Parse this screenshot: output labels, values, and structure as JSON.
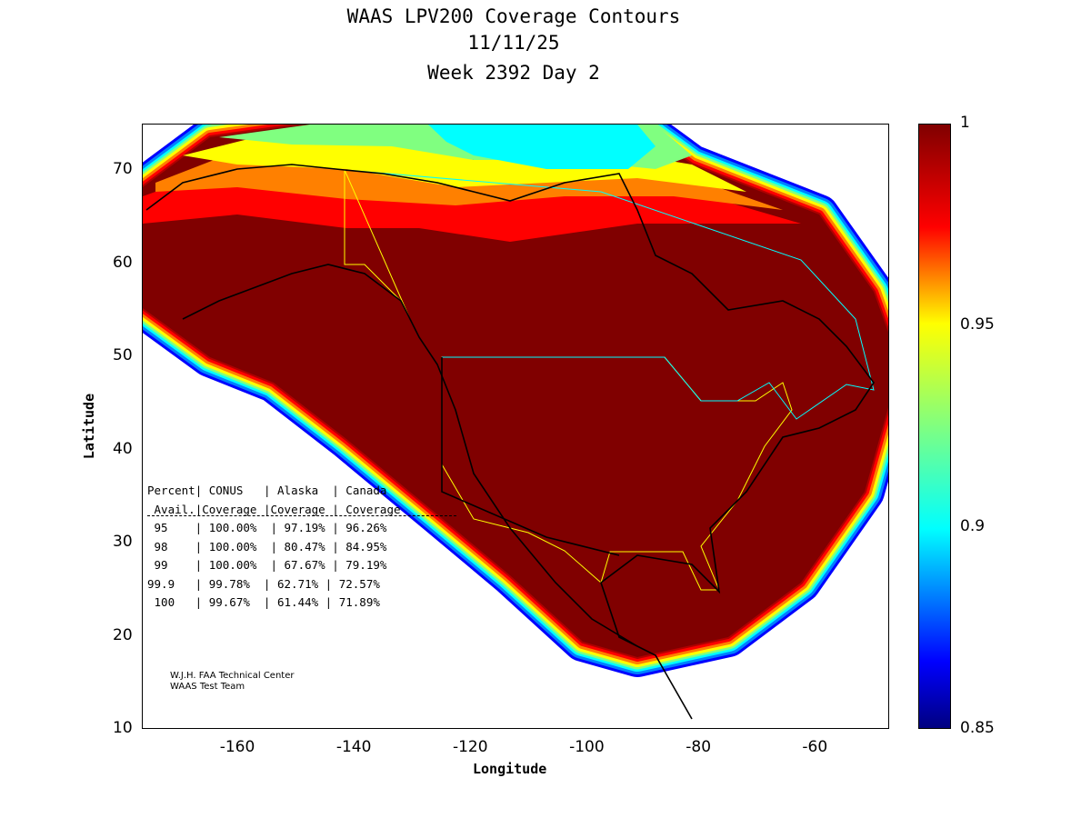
{
  "title": {
    "line1": "WAAS LPV200 Coverage Contours",
    "line2": "11/11/25",
    "line3": "Week 2392 Day 2"
  },
  "chart_data": {
    "type": "heatmap",
    "title": "WAAS LPV200 Coverage Contours",
    "xlabel": "Longitude",
    "ylabel": "Latitude",
    "xlim": [
      -176.5,
      -48.2
    ],
    "ylim": [
      10,
      75
    ],
    "x_ticks": [
      "-160",
      "-140",
      "-120",
      "-100",
      "-80",
      "-60"
    ],
    "y_ticks": [
      "70",
      "60",
      "50",
      "40",
      "30",
      "20",
      "10"
    ],
    "colorbar": {
      "range": [
        0.85,
        1
      ],
      "ticks": [
        "1",
        "0.95",
        "0.9",
        "0.85"
      ],
      "colormap": "jet"
    },
    "table": {
      "header1": [
        "Percent",
        "CONUS",
        "Alaska",
        "Canada"
      ],
      "header2": [
        "Avail.",
        "Coverage",
        "Coverage",
        "Coverage"
      ],
      "rows": [
        [
          "95",
          "100.00%",
          "97.19%",
          "96.26%"
        ],
        [
          "98",
          "100.00%",
          "80.47%",
          "84.95%"
        ],
        [
          "99",
          "100.00%",
          "67.67%",
          "79.19%"
        ],
        [
          "99.9",
          "99.78%",
          "62.71%",
          "72.57%"
        ],
        [
          "100",
          "99.67%",
          "61.44%",
          "71.89%"
        ]
      ]
    }
  },
  "credit": {
    "line1": "W.J.H. FAA Technical Center",
    "line2": "WAAS Test Team"
  },
  "colors": {
    "dark_red": "#800000",
    "red": "#ff0000",
    "orange": "#ff8000",
    "yellow": "#ffff00",
    "green": "#80ff80",
    "cyan": "#00ffff",
    "blue": "#0000ff"
  }
}
